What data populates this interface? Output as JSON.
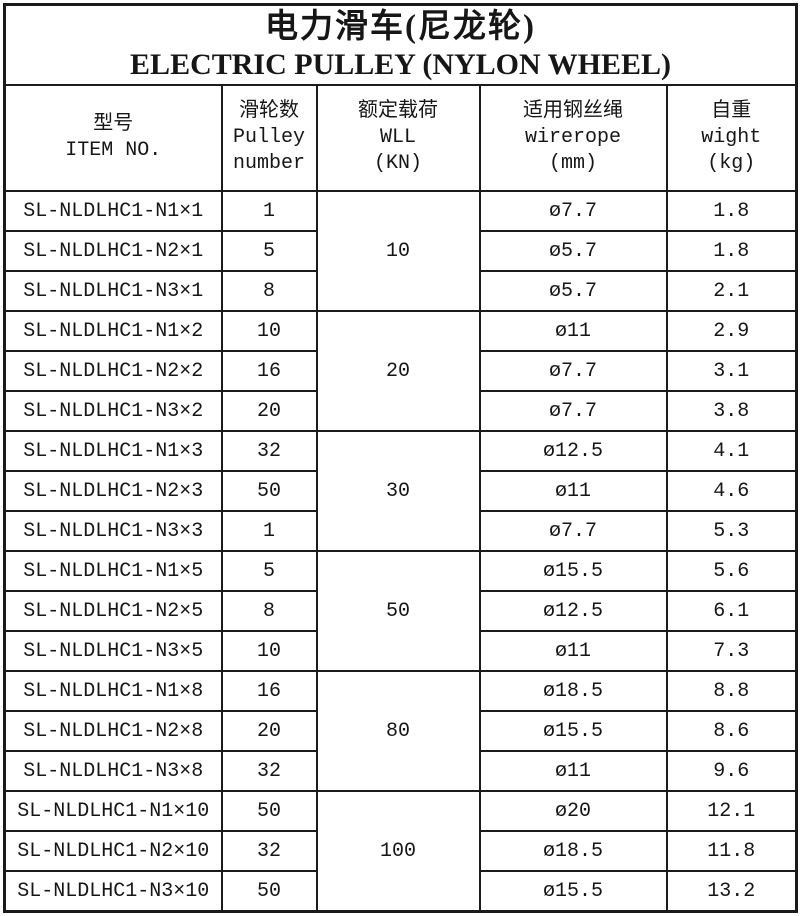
{
  "title": {
    "zh": "电力滑车(尼龙轮)",
    "en": "ELECTRIC PULLEY (NYLON WHEEL)"
  },
  "columns": [
    {
      "lines": [
        "型号",
        "ITEM NO."
      ]
    },
    {
      "lines": [
        "滑轮数",
        "Pulley",
        "number"
      ]
    },
    {
      "lines": [
        "额定载荷",
        "WLL",
        "(KN)"
      ]
    },
    {
      "lines": [
        "适用钢丝绳",
        "wirerope",
        "(mm)"
      ]
    },
    {
      "lines": [
        "自重",
        "wight",
        "(kg)"
      ]
    }
  ],
  "groups": [
    {
      "wll": "10",
      "rows": [
        {
          "item": "SL-NLDLHC1-N1×1",
          "pulley": "1",
          "wirerope": "ø7.7",
          "weight": "1.8"
        },
        {
          "item": "SL-NLDLHC1-N2×1",
          "pulley": "5",
          "wirerope": "ø5.7",
          "weight": "1.8"
        },
        {
          "item": "SL-NLDLHC1-N3×1",
          "pulley": "8",
          "wirerope": "ø5.7",
          "weight": "2.1"
        }
      ]
    },
    {
      "wll": "20",
      "rows": [
        {
          "item": "SL-NLDLHC1-N1×2",
          "pulley": "10",
          "wirerope": "ø11",
          "weight": "2.9"
        },
        {
          "item": "SL-NLDLHC1-N2×2",
          "pulley": "16",
          "wirerope": "ø7.7",
          "weight": "3.1"
        },
        {
          "item": "SL-NLDLHC1-N3×2",
          "pulley": "20",
          "wirerope": "ø7.7",
          "weight": "3.8"
        }
      ]
    },
    {
      "wll": "30",
      "rows": [
        {
          "item": "SL-NLDLHC1-N1×3",
          "pulley": "32",
          "wirerope": "ø12.5",
          "weight": "4.1"
        },
        {
          "item": "SL-NLDLHC1-N2×3",
          "pulley": "50",
          "wirerope": "ø11",
          "weight": "4.6"
        },
        {
          "item": "SL-NLDLHC1-N3×3",
          "pulley": "1",
          "wirerope": "ø7.7",
          "weight": "5.3"
        }
      ]
    },
    {
      "wll": "50",
      "rows": [
        {
          "item": "SL-NLDLHC1-N1×5",
          "pulley": "5",
          "wirerope": "ø15.5",
          "weight": "5.6"
        },
        {
          "item": "SL-NLDLHC1-N2×5",
          "pulley": "8",
          "wirerope": "ø12.5",
          "weight": "6.1"
        },
        {
          "item": "SL-NLDLHC1-N3×5",
          "pulley": "10",
          "wirerope": "ø11",
          "weight": "7.3"
        }
      ]
    },
    {
      "wll": "80",
      "rows": [
        {
          "item": "SL-NLDLHC1-N1×8",
          "pulley": "16",
          "wirerope": "ø18.5",
          "weight": "8.8"
        },
        {
          "item": "SL-NLDLHC1-N2×8",
          "pulley": "20",
          "wirerope": "ø15.5",
          "weight": "8.6"
        },
        {
          "item": "SL-NLDLHC1-N3×8",
          "pulley": "32",
          "wirerope": "ø11",
          "weight": "9.6"
        }
      ]
    },
    {
      "wll": "100",
      "rows": [
        {
          "item": "SL-NLDLHC1-N1×10",
          "pulley": "50",
          "wirerope": "ø20",
          "weight": "12.1"
        },
        {
          "item": "SL-NLDLHC1-N2×10",
          "pulley": "32",
          "wirerope": "ø18.5",
          "weight": "11.8"
        },
        {
          "item": "SL-NLDLHC1-N3×10",
          "pulley": "50",
          "wirerope": "ø15.5",
          "weight": "13.2"
        }
      ]
    }
  ],
  "colors": {
    "border": "#1b1b1b",
    "text": "#161616",
    "background": "#ffffff"
  }
}
